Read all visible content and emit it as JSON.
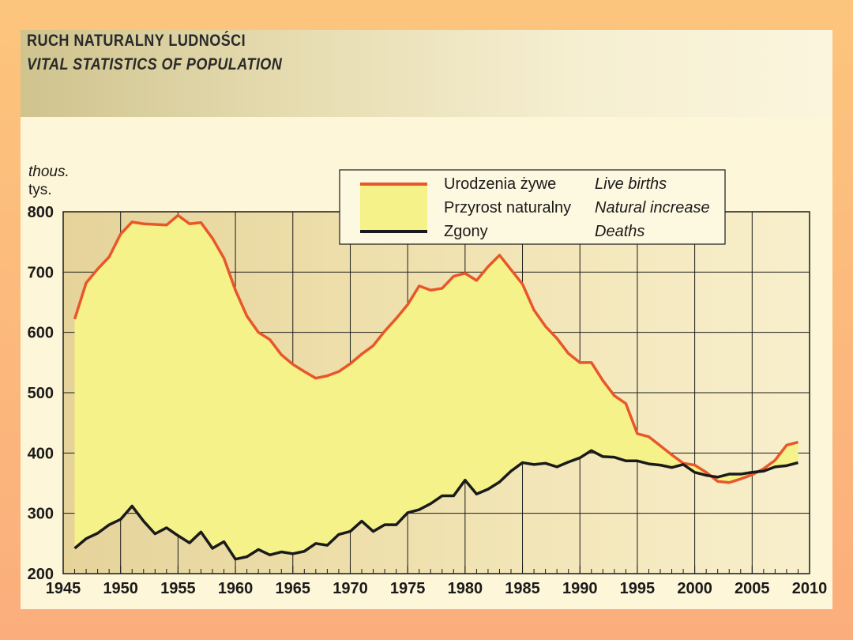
{
  "header": {
    "title": "RUCH NATURALNY LUDNOŚCI",
    "subtitle": "VITAL STATISTICS OF POPULATION"
  },
  "unit": {
    "en": "thous.",
    "pl": "tys."
  },
  "legend": [
    {
      "pl": "Urodzenia żywe",
      "en": "Live births",
      "kind": "line",
      "color": "#e8572a"
    },
    {
      "pl": "Przyrost naturalny",
      "en": "Natural increase",
      "kind": "area",
      "color": "#f6f28a"
    },
    {
      "pl": "Zgony",
      "en": "Deaths",
      "kind": "line",
      "color": "#1a1a1a"
    }
  ],
  "colors": {
    "births": "#e8572a",
    "deaths": "#1a1a1a",
    "increase_fill": "#f6f28a"
  },
  "chart_data": {
    "type": "line",
    "xlim": [
      1945,
      2010
    ],
    "ylim": [
      200,
      800
    ],
    "xticks": [
      "1945",
      "1950",
      "1955",
      "1960",
      "1965",
      "1970",
      "1975",
      "1980",
      "1985",
      "1990",
      "1995",
      "2000",
      "2005",
      "2010"
    ],
    "yticks": [
      "200",
      "300",
      "400",
      "500",
      "600",
      "700",
      "800"
    ],
    "grid": true,
    "legend_position": "top-center",
    "x": [
      1946,
      1947,
      1948,
      1949,
      1950,
      1951,
      1952,
      1953,
      1954,
      1955,
      1956,
      1957,
      1958,
      1959,
      1960,
      1961,
      1962,
      1963,
      1964,
      1965,
      1966,
      1967,
      1968,
      1969,
      1970,
      1971,
      1972,
      1973,
      1974,
      1975,
      1976,
      1977,
      1978,
      1979,
      1980,
      1981,
      1982,
      1983,
      1984,
      1985,
      1986,
      1987,
      1988,
      1989,
      1990,
      1991,
      1992,
      1993,
      1994,
      1995,
      1996,
      1997,
      1998,
      1999,
      2000,
      2001,
      2002,
      2003,
      2004,
      2005,
      2006,
      2007,
      2008,
      2009
    ],
    "series": [
      {
        "name": "Urodzenia żywe",
        "values": [
          622,
          682,
          705,
          725,
          763,
          783,
          780,
          779,
          778,
          794,
          780,
          782,
          756,
          723,
          670,
          627,
          600,
          588,
          563,
          547,
          535,
          524,
          528,
          535,
          548,
          564,
          578,
          602,
          623,
          646,
          677,
          670,
          673,
          693,
          698,
          686,
          709,
          728,
          704,
          680,
          637,
          610,
          590,
          565,
          550,
          550,
          520,
          495,
          482,
          432,
          427,
          412,
          397,
          383,
          380,
          368,
          353,
          351,
          357,
          364,
          374,
          388,
          413,
          418
        ]
      },
      {
        "name": "Zgony",
        "values": [
          242,
          258,
          267,
          281,
          290,
          312,
          287,
          266,
          276,
          263,
          251,
          269,
          242,
          253,
          224,
          228,
          240,
          231,
          236,
          233,
          237,
          250,
          247,
          265,
          270,
          287,
          270,
          281,
          281,
          301,
          306,
          316,
          329,
          329,
          355,
          332,
          340,
          352,
          370,
          384,
          381,
          383,
          377,
          385,
          392,
          404,
          394,
          393,
          387,
          387,
          382,
          380,
          376,
          381,
          368,
          363,
          360,
          365,
          365,
          368,
          370,
          377,
          379,
          384
        ]
      }
    ]
  }
}
